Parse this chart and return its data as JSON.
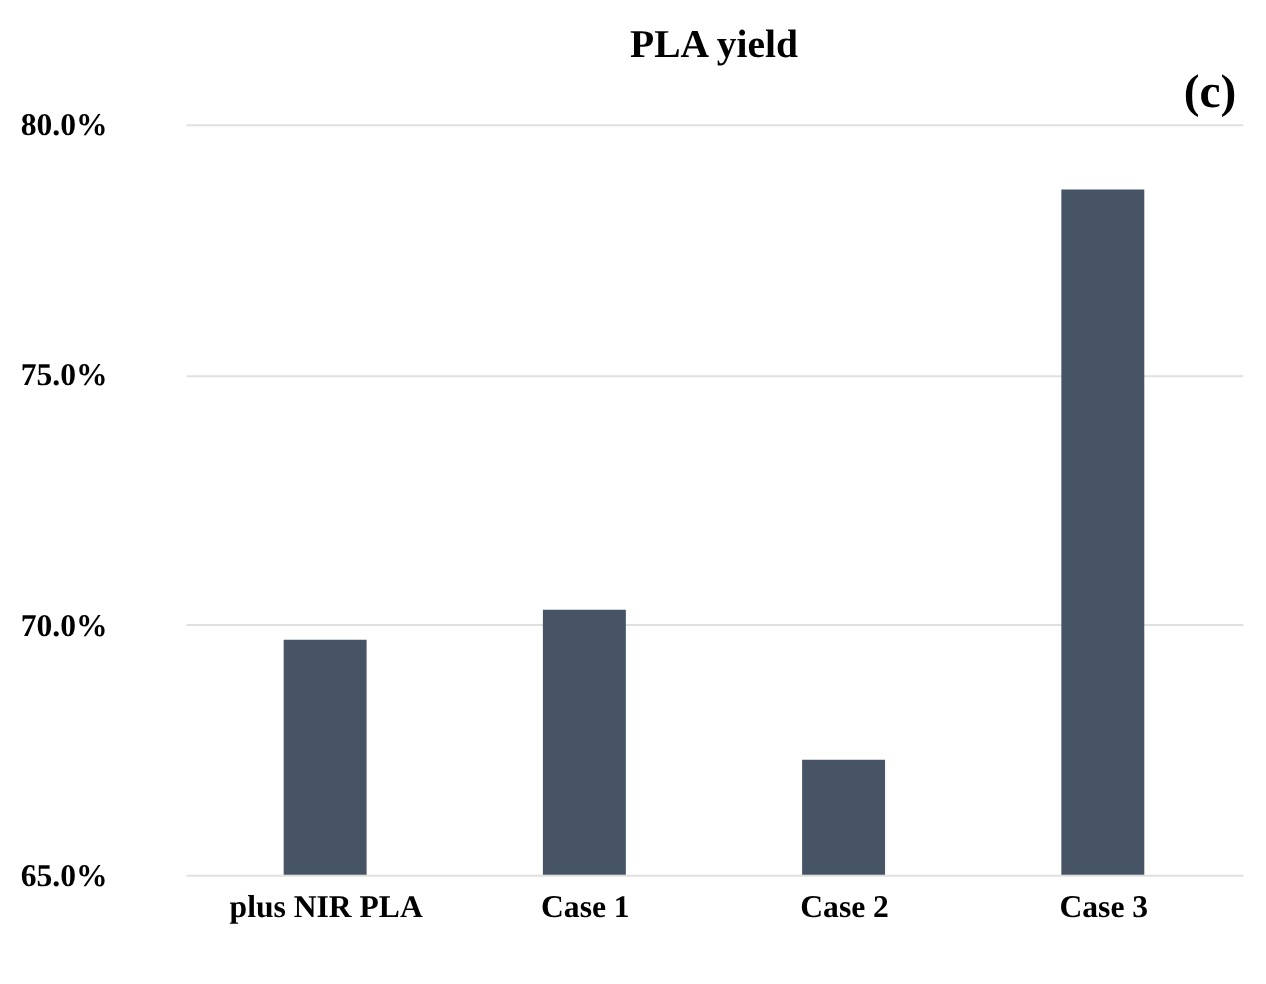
{
  "chart_data": {
    "type": "bar",
    "title": "PLA yield",
    "annotations": [
      "(c)"
    ],
    "categories": [
      "plus NIR PLA",
      "Case 1",
      "Case 2",
      "Case 3"
    ],
    "values": [
      69.7,
      70.3,
      67.3,
      78.7
    ],
    "color": "#475466",
    "ylim": [
      65,
      80
    ],
    "yticks": [
      {
        "value": 65,
        "label": "65.0%"
      },
      {
        "value": 70,
        "label": "70.0%"
      },
      {
        "value": 75,
        "label": "75.0%"
      },
      {
        "value": 80,
        "label": "80.0%"
      }
    ],
    "grid": "y"
  }
}
